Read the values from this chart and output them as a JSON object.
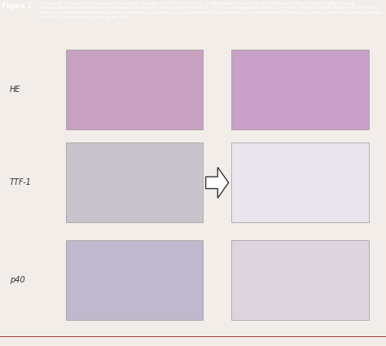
{
  "figure_label": "Figure 2",
  "title_text": "Histologic Change From Adenocarcinoma to Squamous Cell Carcinoma. (Left) Resected Lung Sample Showing Predominant Papillary Lung Adenocarcinoma, With Positive Nuclear Staining for Transcription Factor-1 (TTF-1) and Negative Staining for p40. (Right) Repeat Biopsy of Liver After Erlotinib Treatment Showing Transformation to Squamous Cell Carcinoma Characterized by a Keratin Pearl Formation (Arrow), With Negative Staining for TTF-1 and Positive Staining for p40",
  "header_bg": "#9B2335",
  "header_text_color": "#FFFFFF",
  "body_bg": "#F2EDE8",
  "figure_label_color": "#FFFFFF",
  "row_labels": [
    "HE",
    "TTF-1",
    "p40"
  ],
  "label_color": "#333333",
  "image_border_color": "#999999",
  "arrow_fill": "#FFFFFF",
  "arrow_edge": "#333333",
  "footer_bg": "#E8E2DA",
  "footer_line_color": "#8B2222",
  "left_img_colors": [
    "#C8A0C0",
    "#C8C4CC",
    "#C0B8CC"
  ],
  "right_img_colors": [
    "#C8A0C8",
    "#EAE4EE",
    "#DDD4E0"
  ]
}
